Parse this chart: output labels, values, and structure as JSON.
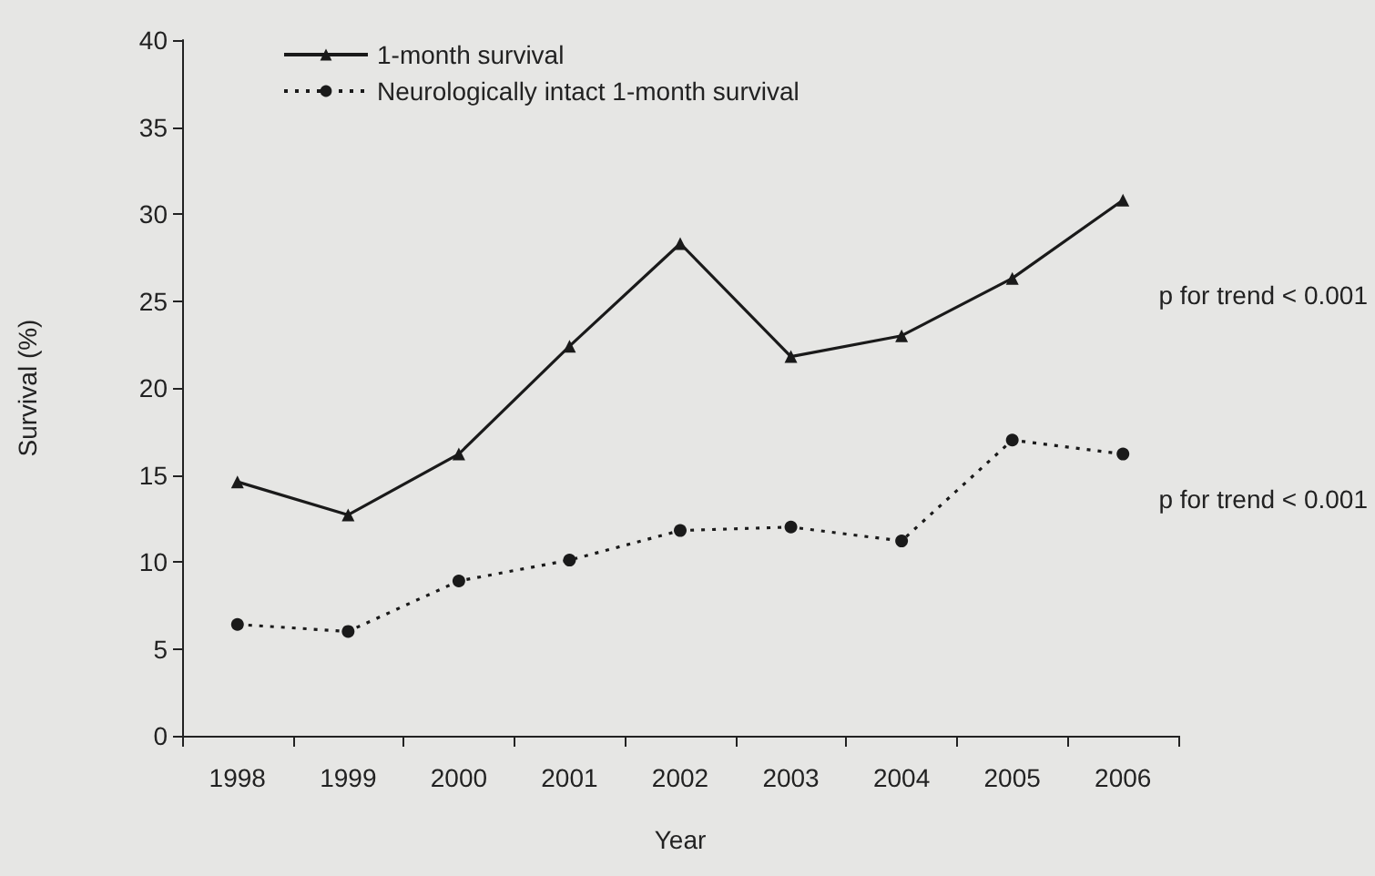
{
  "chart_data": {
    "type": "line",
    "xlabel": "Year",
    "ylabel": "Survival (%)",
    "categories": [
      "1998",
      "1999",
      "2000",
      "2001",
      "2002",
      "2003",
      "2004",
      "2005",
      "2006"
    ],
    "series": [
      {
        "name": "1-month survival",
        "color": "#1a1a1a",
        "marker": "triangle",
        "line_style": "solid",
        "values": [
          14.6,
          12.7,
          16.2,
          22.4,
          28.3,
          21.8,
          23.0,
          26.3,
          30.8
        ]
      },
      {
        "name": "Neurologically intact 1-month survival",
        "color": "#1a1a1a",
        "marker": "circle",
        "line_style": "dotted",
        "values": [
          6.4,
          6.0,
          8.9,
          10.1,
          11.8,
          12.0,
          11.2,
          17.0,
          16.2
        ]
      }
    ],
    "ylim": [
      0,
      40
    ],
    "yticks": [
      0,
      5,
      10,
      15,
      20,
      25,
      30,
      35,
      40
    ],
    "grid": false,
    "legend": "top left",
    "annotations": [
      "p for trend < 0.001",
      "p for trend < 0.001"
    ]
  }
}
